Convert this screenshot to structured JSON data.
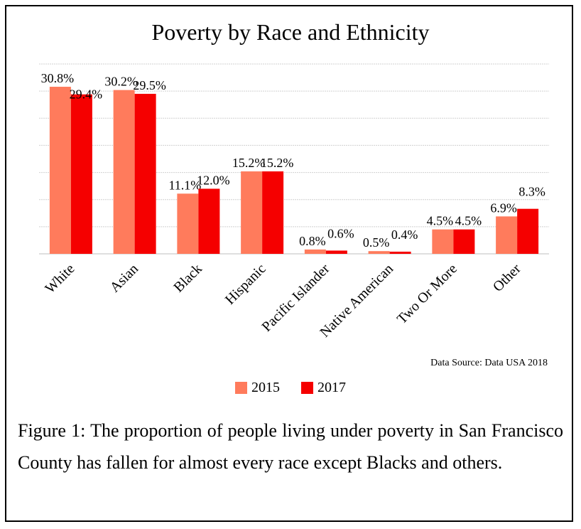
{
  "chart_data": {
    "type": "bar",
    "title": "Poverty by Race and Ethnicity",
    "categories": [
      "White",
      "Asian",
      "Black",
      "Hispanic",
      "Pacific Islander",
      "Native American",
      "Two Or More",
      "Other"
    ],
    "series": [
      {
        "name": "2015",
        "color": "#ff7b5c",
        "values": [
          30.8,
          30.2,
          11.1,
          15.2,
          0.8,
          0.5,
          4.5,
          6.9
        ],
        "labels": [
          "30.8%",
          "30.2%",
          "11.1%",
          "15.2%",
          "0.8%",
          "0.5%",
          "4.5%",
          "6.9%"
        ]
      },
      {
        "name": "2017",
        "color": "#f50000",
        "values": [
          29.4,
          29.5,
          12.0,
          15.2,
          0.6,
          0.4,
          4.5,
          8.3
        ],
        "labels": [
          "29.4%",
          "29.5%",
          "12.0%",
          "15.2%",
          "0.6%",
          "0.4%",
          "4.5%",
          "8.3%"
        ]
      }
    ],
    "ylim": [
      0,
      35
    ],
    "grid": true,
    "legend": "bottom-center",
    "source": "Data Source: Data USA  2018"
  },
  "caption": "Figure 1: The proportion of people living under poverty in San Francisco County has fallen for almost every race except Blacks and others."
}
